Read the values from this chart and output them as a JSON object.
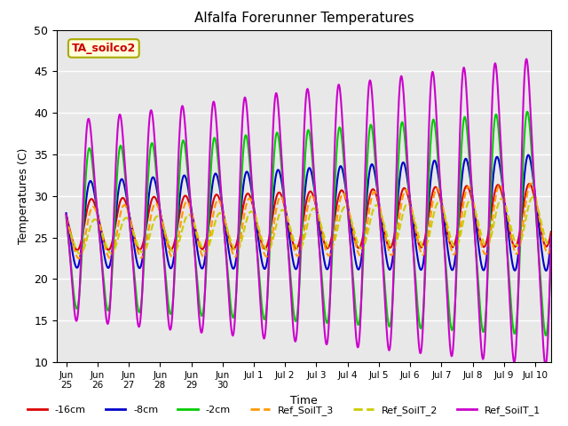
{
  "title": "Alfalfa Forerunner Temperatures",
  "xlabel": "Time",
  "ylabel": "Temperatures (C)",
  "ylim": [
    10,
    50
  ],
  "annotation_text": "TA_soilco2",
  "annotation_color": "#cc0000",
  "annotation_bg": "#ffffdd",
  "annotation_border": "#aaaa00",
  "background_color": "#e8e8e8",
  "series": [
    {
      "label": "-16cm",
      "color": "#dd0000",
      "lw": 1.5,
      "ls": "-"
    },
    {
      "label": "-8cm",
      "color": "#0000cc",
      "lw": 1.5,
      "ls": "-"
    },
    {
      "label": "-2cm",
      "color": "#00cc00",
      "lw": 1.5,
      "ls": "-"
    },
    {
      "label": "Ref_SoilT_3",
      "color": "#ff9900",
      "lw": 1.5,
      "ls": "--"
    },
    {
      "label": "Ref_SoilT_2",
      "color": "#cccc00",
      "lw": 1.5,
      "ls": "--"
    },
    {
      "label": "Ref_SoilT_1",
      "color": "#cc00cc",
      "lw": 1.5,
      "ls": "-"
    }
  ],
  "xtick_labels": [
    "Jun\n25",
    "Jun\n26",
    "Jun\n27",
    "Jun\n28",
    "Jun\n29",
    "Jun\n30",
    "Jul 1",
    "Jul 2",
    "Jul 3",
    "Jul 4",
    "Jul 5",
    "Jul 6",
    "Jul 7",
    "Jul 8",
    "Jul 9",
    "Jul 10"
  ],
  "xtick_positions": [
    0,
    1,
    2,
    3,
    4,
    5,
    6,
    7,
    8,
    9,
    10,
    11,
    12,
    13,
    14,
    15
  ]
}
